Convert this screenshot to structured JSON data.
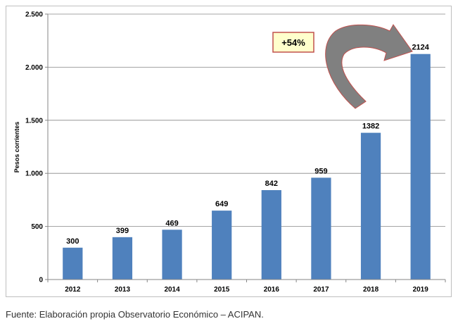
{
  "chart_data": {
    "type": "bar",
    "categories": [
      "2012",
      "2013",
      "2014",
      "2015",
      "2016",
      "2017",
      "2018",
      "2019"
    ],
    "values": [
      300,
      399,
      469,
      649,
      842,
      959,
      1382,
      2124
    ],
    "data_labels": [
      "300",
      "399",
      "469",
      "649",
      "842",
      "959",
      "1382",
      "2124"
    ],
    "ylabel": "Pesos corrientes",
    "ylim": [
      0,
      2500
    ],
    "yticks": [
      0,
      500,
      1000,
      1500,
      2000,
      2500
    ],
    "ytick_labels": [
      "0",
      "500",
      "1.000",
      "1.500",
      "2.000",
      "2.500"
    ],
    "grid": true,
    "bar_color": "#4f81bd",
    "annotation": {
      "text": "+54%",
      "box_fill": "#ffffcc",
      "box_border": "#c0504d",
      "arrow_fill": "#808080",
      "arrow_border": "#c0504d"
    }
  },
  "source_note": "Fuente: Elaboración propia Observatorio Económico – ACIPAN."
}
